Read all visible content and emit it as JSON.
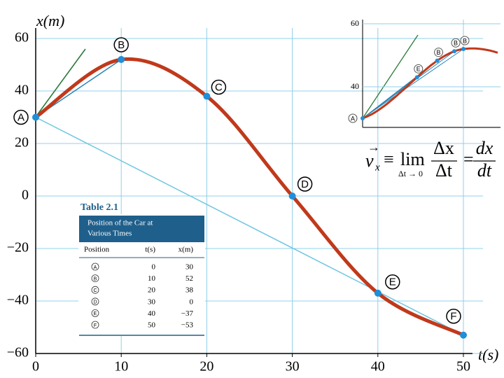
{
  "chart_data": {
    "type": "line",
    "x_label": "t(s)",
    "y_label": "x(m)",
    "x": [
      0,
      10,
      20,
      30,
      40,
      50
    ],
    "values": [
      30,
      52,
      38,
      0,
      -37,
      -53
    ],
    "point_labels": [
      "A",
      "B",
      "C",
      "D",
      "E",
      "F"
    ],
    "color": "#c0391b",
    "point_color": "#1f8fd8",
    "xlim": [
      0,
      50
    ],
    "xticks": [
      0,
      10,
      20,
      30,
      40,
      50
    ],
    "ylim": [
      -60,
      60
    ],
    "yticks": [
      {
        "value": -60,
        "label": "−60"
      },
      {
        "value": -40,
        "label": "−40"
      },
      {
        "value": -20,
        "label": "−20"
      },
      0,
      20,
      40,
      60
    ],
    "grid": true
  },
  "inset": {
    "xlim": [
      0,
      13.5
    ],
    "ylim": [
      27,
      61
    ],
    "yticks": [
      40,
      60
    ],
    "labels": [
      "A",
      "E",
      "B",
      "B",
      "B"
    ]
  },
  "formula": {
    "v": "v",
    "sub": "x",
    "equiv": "≡",
    "lim": "lim",
    "limsub": "Δt → 0",
    "num1": "Δx",
    "den1": "Δt",
    "eq": "=",
    "num2": "dx",
    "den2": "dt"
  },
  "table": {
    "label": "Table 2.1",
    "title": [
      "Position of the Car at",
      "Various Times"
    ],
    "columns": [
      "Position",
      "t(s)",
      "x(m)"
    ],
    "rows": [
      [
        "A",
        "0",
        "30"
      ],
      [
        "B",
        "10",
        "52"
      ],
      [
        "C",
        "20",
        "38"
      ],
      [
        "D",
        "30",
        "0"
      ],
      [
        "E",
        "40",
        "−37"
      ],
      [
        "F",
        "50",
        "−53"
      ]
    ]
  }
}
